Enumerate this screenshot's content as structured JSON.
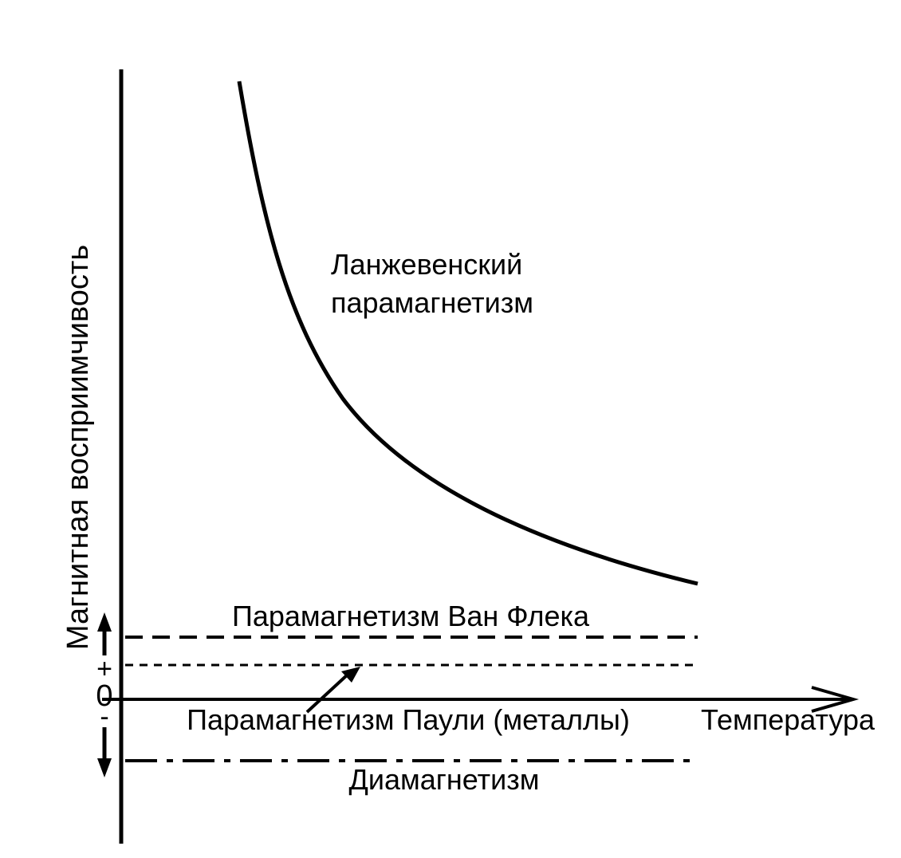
{
  "labels": {
    "y_axis": "Магнитная восприимчивость",
    "x_axis": "Температура",
    "langevin_line1": "Ланжевенский",
    "langevin_line2": "парамагнетизм",
    "van_vleck": "Парамагнетизм Ван Флека",
    "pauli": "Парамагнетизм Паули (металлы)",
    "diamagnetism": "Диамагнетизм",
    "plus_sign": "+",
    "zero": "0",
    "minus_sign": "-"
  },
  "colors": {
    "ink": "#000000",
    "background": "#ffffff"
  },
  "curves": {
    "langevin": {
      "style": "solid",
      "shape": "hyperbolic decay (~1/T)"
    },
    "van_vleck": {
      "style": "long-dash",
      "shape": "constant"
    },
    "pauli": {
      "style": "short-dash",
      "shape": "constant"
    },
    "diamagnetism": {
      "style": "dash-dot",
      "shape": "constant negative"
    }
  }
}
